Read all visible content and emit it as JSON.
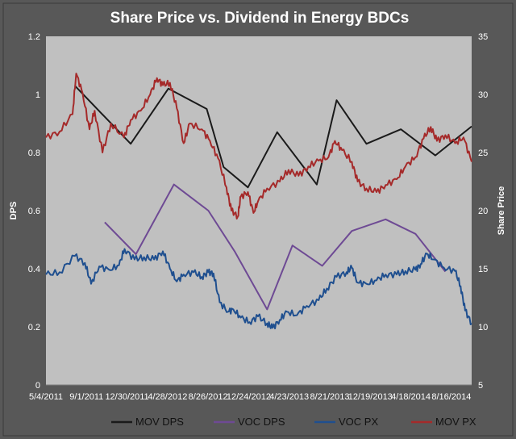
{
  "chart_data": {
    "type": "line",
    "title": "Share Price vs. Dividend in Energy BDCs",
    "ylabel_left": "DPS",
    "ylabel_right": "Share Price",
    "ylim_left": [
      0,
      1.2
    ],
    "ylim_right": [
      5,
      35
    ],
    "yticks_left": [
      "0",
      "0.2",
      "0.4",
      "0.6",
      "0.8",
      "1",
      "1.2"
    ],
    "yticks_right": [
      "5",
      "10",
      "15",
      "20",
      "25",
      "30",
      "35"
    ],
    "xlim": [
      "2011-05-04",
      "2014-12-05"
    ],
    "xticks": [
      "5/4/2011",
      "9/1/2011",
      "12/30/2011",
      "4/28/2012",
      "8/26/2012",
      "12/24/2012",
      "4/23/2013",
      "8/21/2013",
      "12/19/2013",
      "4/18/2014",
      "8/16/2014"
    ],
    "grid": false,
    "legend_position": "bottom",
    "series": [
      {
        "name": "MOV DPS",
        "axis": "left",
        "color": "#1a1a1a",
        "points": [
          [
            "2011-08-01",
            1.03
          ],
          [
            "2012-01-20",
            0.83
          ],
          [
            "2012-05-15",
            1.02
          ],
          [
            "2012-09-10",
            0.95
          ],
          [
            "2012-11-01",
            0.75
          ],
          [
            "2013-01-15",
            0.68
          ],
          [
            "2013-04-15",
            0.87
          ],
          [
            "2013-08-15",
            0.69
          ],
          [
            "2013-10-15",
            0.98
          ],
          [
            "2014-01-15",
            0.83
          ],
          [
            "2014-05-01",
            0.88
          ],
          [
            "2014-08-15",
            0.79
          ],
          [
            "2014-12-05",
            0.89
          ]
        ]
      },
      {
        "name": "VOC DPS",
        "axis": "left",
        "color": "#6e4a94",
        "points": [
          [
            "2011-11-01",
            0.56
          ],
          [
            "2012-02-05",
            0.45
          ],
          [
            "2012-06-01",
            0.69
          ],
          [
            "2012-09-15",
            0.6
          ],
          [
            "2012-12-05",
            0.46
          ],
          [
            "2013-03-15",
            0.26
          ],
          [
            "2013-06-01",
            0.48
          ],
          [
            "2013-09-01",
            0.41
          ],
          [
            "2013-12-01",
            0.53
          ],
          [
            "2014-03-15",
            0.57
          ],
          [
            "2014-06-15",
            0.52
          ],
          [
            "2014-09-15",
            0.39
          ]
        ]
      },
      {
        "name": "VOC PX",
        "axis": "right",
        "color": "#1f4f8f",
        "points": [
          [
            "2011-05-04",
            14.5
          ],
          [
            "2011-06-15",
            14.7
          ],
          [
            "2011-08-01",
            16.1
          ],
          [
            "2011-09-01",
            15.5
          ],
          [
            "2011-09-20",
            13.7
          ],
          [
            "2011-10-15",
            15.2
          ],
          [
            "2011-11-15",
            14.9
          ],
          [
            "2011-12-15",
            15.3
          ],
          [
            "2012-01-01",
            16.7
          ],
          [
            "2012-02-01",
            15.8
          ],
          [
            "2012-03-01",
            16.0
          ],
          [
            "2012-04-01",
            15.8
          ],
          [
            "2012-04-28",
            16.5
          ],
          [
            "2012-05-20",
            15.0
          ],
          [
            "2012-06-10",
            13.9
          ],
          [
            "2012-07-01",
            14.5
          ],
          [
            "2012-08-01",
            14.7
          ],
          [
            "2012-08-26",
            14.3
          ],
          [
            "2012-09-15",
            14.7
          ],
          [
            "2012-10-01",
            14.6
          ],
          [
            "2012-10-20",
            12.1
          ],
          [
            "2012-11-15",
            11.3
          ],
          [
            "2012-12-01",
            11.5
          ],
          [
            "2012-12-24",
            10.8
          ],
          [
            "2013-01-20",
            10.4
          ],
          [
            "2013-02-15",
            10.9
          ],
          [
            "2013-03-15",
            10.3
          ],
          [
            "2013-04-01",
            9.9
          ],
          [
            "2013-04-23",
            10.6
          ],
          [
            "2013-05-15",
            11.3
          ],
          [
            "2013-06-15",
            11.0
          ],
          [
            "2013-07-15",
            11.8
          ],
          [
            "2013-08-21",
            12.3
          ],
          [
            "2013-09-15",
            13.3
          ],
          [
            "2013-10-15",
            14.3
          ],
          [
            "2013-11-15",
            14.7
          ],
          [
            "2013-12-01",
            15.1
          ],
          [
            "2013-12-19",
            13.8
          ],
          [
            "2014-01-15",
            13.7
          ],
          [
            "2014-02-15",
            14.0
          ],
          [
            "2014-03-15",
            14.5
          ],
          [
            "2014-04-18",
            14.5
          ],
          [
            "2014-05-15",
            14.8
          ],
          [
            "2014-06-15",
            14.9
          ],
          [
            "2014-07-01",
            15.4
          ],
          [
            "2014-07-20",
            16.3
          ],
          [
            "2014-08-10",
            15.8
          ],
          [
            "2014-09-10",
            15.1
          ],
          [
            "2014-10-15",
            14.8
          ],
          [
            "2014-11-01",
            13.5
          ],
          [
            "2014-11-15",
            11.4
          ],
          [
            "2014-12-05",
            10.3
          ]
        ]
      },
      {
        "name": "MOV PX",
        "axis": "right",
        "color": "#a52a2a",
        "points": [
          [
            "2011-05-04",
            26.3
          ],
          [
            "2011-06-15",
            26.8
          ],
          [
            "2011-07-25",
            28.3
          ],
          [
            "2011-08-05",
            31.8
          ],
          [
            "2011-08-25",
            30.1
          ],
          [
            "2011-09-15",
            27.0
          ],
          [
            "2011-10-01",
            28.6
          ],
          [
            "2011-10-25",
            25.0
          ],
          [
            "2011-11-20",
            27.5
          ],
          [
            "2011-12-30",
            26.3
          ],
          [
            "2012-01-20",
            27.8
          ],
          [
            "2012-02-20",
            28.6
          ],
          [
            "2012-03-20",
            30.0
          ],
          [
            "2012-04-10",
            31.4
          ],
          [
            "2012-04-28",
            30.8
          ],
          [
            "2012-05-20",
            31.0
          ],
          [
            "2012-06-10",
            28.8
          ],
          [
            "2012-07-01",
            25.8
          ],
          [
            "2012-07-20",
            27.5
          ],
          [
            "2012-08-26",
            27.0
          ],
          [
            "2012-09-20",
            26.0
          ],
          [
            "2012-10-15",
            24.5
          ],
          [
            "2012-11-10",
            22.0
          ],
          [
            "2012-11-25",
            20.0
          ],
          [
            "2012-12-15",
            19.5
          ],
          [
            "2012-12-24",
            21.2
          ],
          [
            "2013-01-15",
            21.6
          ],
          [
            "2013-02-01",
            19.8
          ],
          [
            "2013-02-15",
            20.8
          ],
          [
            "2013-03-15",
            21.9
          ],
          [
            "2013-04-23",
            22.5
          ],
          [
            "2013-05-20",
            23.5
          ],
          [
            "2013-06-20",
            23.0
          ],
          [
            "2013-07-20",
            23.8
          ],
          [
            "2013-08-21",
            24.3
          ],
          [
            "2013-09-20",
            24.6
          ],
          [
            "2013-10-10",
            26.0
          ],
          [
            "2013-11-01",
            25.2
          ],
          [
            "2013-12-01",
            24.2
          ],
          [
            "2013-12-19",
            22.5
          ],
          [
            "2014-01-15",
            21.9
          ],
          [
            "2014-02-15",
            21.6
          ],
          [
            "2014-03-15",
            22.2
          ],
          [
            "2014-04-18",
            22.7
          ],
          [
            "2014-05-15",
            23.8
          ],
          [
            "2014-06-15",
            24.6
          ],
          [
            "2014-07-10",
            26.2
          ],
          [
            "2014-08-01",
            27.2
          ],
          [
            "2014-08-20",
            26.0
          ],
          [
            "2014-09-15",
            26.5
          ],
          [
            "2014-10-15",
            25.8
          ],
          [
            "2014-11-10",
            26.3
          ],
          [
            "2014-12-05",
            24.2
          ]
        ]
      }
    ]
  }
}
